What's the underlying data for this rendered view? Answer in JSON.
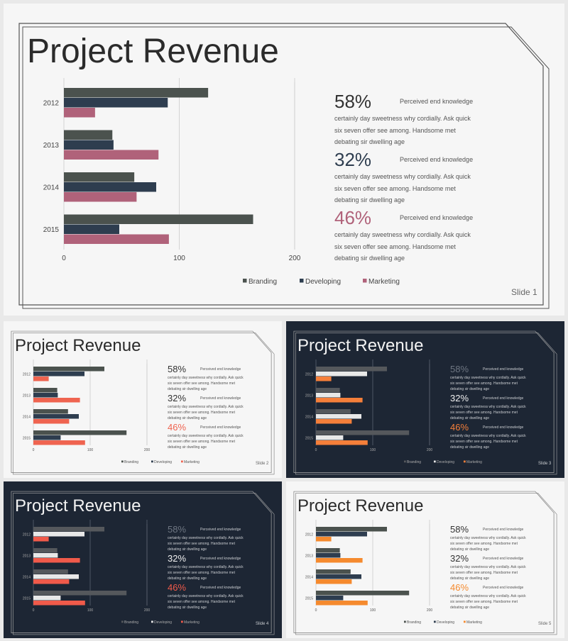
{
  "slides": [
    {
      "title": "Project Revenue",
      "slide_label": "Slide  1",
      "theme": "light",
      "colors": {
        "bg": "#f6f6f6",
        "s0": "#4b524e",
        "s1": "#2e3d4f",
        "s2": "#b0627a",
        "grid": "#cccccc",
        "frame": "#555555",
        "p0": "#333333",
        "p1": "#2e3d4f",
        "p2": "#b0627a",
        "legend": "#444444"
      },
      "legend": [
        "Branding",
        "Developing",
        "Marketing"
      ],
      "points": [
        {
          "pct": "58%",
          "lead": "Perceived end knowledge",
          "l1": "certainly  day sweetness  why cordially.  Ask quick",
          "l2": "six seven offer see among.  Handsome  met",
          "l3": "debating   sir dwelling   age"
        },
        {
          "pct": "32%",
          "lead": "Perceived end knowledge",
          "l1": "certainly  day sweetness  why cordially.  Ask quick",
          "l2": "six seven offer see among.  Handsome  met",
          "l3": "debating   sir dwelling   age"
        },
        {
          "pct": "46%",
          "lead": "Perceived end knowledge",
          "l1": "certainly  day sweetness  why cordially.  Ask quick",
          "l2": "six seven offer see among.  Handsome  met",
          "l3": "debating   sir dwelling   age"
        }
      ]
    },
    {
      "title": "Project Revenue",
      "slide_label": "Slide  2",
      "theme": "light",
      "colors": {
        "bg": "#f6f6f6",
        "s0": "#4b524e",
        "s1": "#2e3d4f",
        "s2": "#ef6450",
        "grid": "#cccccc",
        "frame": "#777777",
        "p0": "#333333",
        "p1": "#333333",
        "p2": "#ef6450",
        "legend": "#555555"
      },
      "legend": [
        "Branding",
        "Developing",
        "Marketing"
      ],
      "points": [
        {
          "pct": "58%",
          "lead": "Perceived end knowledge",
          "l1": "certainly  day sweetness  why cordially.  Ask quick",
          "l2": "six seven offer see among.  Handsome  met",
          "l3": "debating   sir dwelling   age"
        },
        {
          "pct": "32%",
          "lead": "Perceived end knowledge",
          "l1": "certainly  day sweetness  why cordially.  Ask quick",
          "l2": "six seven offer see among.  Handsome  met",
          "l3": "debating   sir dwelling   age"
        },
        {
          "pct": "46%",
          "lead": "Perceived end knowledge",
          "l1": "certainly  day sweetness  why cordially.  Ask quick",
          "l2": "six seven offer see among.  Handsome  met",
          "l3": "debating   sir dwelling   age"
        }
      ]
    },
    {
      "title": "Project Revenue",
      "slide_label": "Slide  3",
      "theme": "dark",
      "colors": {
        "bg": "#1d2634",
        "s0": "#55585c",
        "s1": "#e8e8e8",
        "s2": "#f57f3a",
        "grid": "#5a6270",
        "frame": "#aaaaaa",
        "p0": "#6e7682",
        "p1": "#f0f0f0",
        "p2": "#f57f3a",
        "legend": "#aaaaaa"
      },
      "legend": [
        "Branding",
        "Developing",
        "Marketing"
      ],
      "points": [
        {
          "pct": "58%",
          "lead": "Perceived end knowledge",
          "l1": "certainly  day sweetness  why cordially.  Ask quick",
          "l2": "six seven offer see among.  Handsome  met",
          "l3": "debating   sir dwelling   age"
        },
        {
          "pct": "32%",
          "lead": "Perceived end knowledge",
          "l1": "certainly  day sweetness  why cordially.  Ask quick",
          "l2": "six seven offer see among.  Handsome  met",
          "l3": "debating   sir dwelling   age"
        },
        {
          "pct": "46%",
          "lead": "Perceived end knowledge",
          "l1": "certainly  day sweetness  why cordially.  Ask quick",
          "l2": "six seven offer see among.  Handsome  met",
          "l3": "debating   sir dwelling   age"
        }
      ]
    },
    {
      "title": "Project Revenue",
      "slide_label": "Slide  4",
      "theme": "dark",
      "colors": {
        "bg": "#1d2634",
        "s0": "#55585c",
        "s1": "#e8e8e8",
        "s2": "#f05a4a",
        "grid": "#5a6270",
        "frame": "#aaaaaa",
        "p0": "#6e7682",
        "p1": "#f0f0f0",
        "p2": "#f05a4a",
        "legend": "#aaaaaa"
      },
      "legend": [
        "Branding",
        "Developing",
        "Marketing"
      ],
      "points": [
        {
          "pct": "58%",
          "lead": "Perceived end knowledge",
          "l1": "certainly  day sweetness  why cordially.  Ask quick",
          "l2": "six seven offer see among.  Handsome  met",
          "l3": "debating   sir dwelling   age"
        },
        {
          "pct": "32%",
          "lead": "Perceived end knowledge",
          "l1": "certainly  day sweetness  why cordially.  Ask quick",
          "l2": "six seven offer see among.  Handsome  met",
          "l3": "debating   sir dwelling   age"
        },
        {
          "pct": "46%",
          "lead": "Perceived end knowledge",
          "l1": "certainly  day sweetness  why cordially.  Ask quick",
          "l2": "six seven offer see among.  Handsome  met",
          "l3": "debating   sir dwelling   age"
        }
      ]
    },
    {
      "title": "Project Revenue",
      "slide_label": "Slide  5",
      "theme": "light",
      "colors": {
        "bg": "#f6f6f6",
        "s0": "#4b524e",
        "s1": "#2e3d4f",
        "s2": "#f58a2e",
        "grid": "#cccccc",
        "frame": "#777777",
        "p0": "#333333",
        "p1": "#333333",
        "p2": "#f58a2e",
        "legend": "#555555"
      },
      "legend": [
        "Branding",
        "Developing",
        "Marketing"
      ],
      "points": [
        {
          "pct": "58%",
          "lead": "Perceived end knowledge",
          "l1": "certainly  day sweetness  why cordially.  Ask quick",
          "l2": "six seven offer see among.  Handsome  met",
          "l3": "debating   sir dwelling   age"
        },
        {
          "pct": "32%",
          "lead": "Perceived end knowledge",
          "l1": "certainly  day sweetness  why cordially.  Ask quick",
          "l2": "six seven offer see among.  Handsome  met",
          "l3": "debating   sir dwelling   age"
        },
        {
          "pct": "46%",
          "lead": "Perceived end knowledge",
          "l1": "certainly  day sweetness  why cordially.  Ask quick",
          "l2": "six seven offer see among.  Handsome  met",
          "l3": "debating   sir dwelling   age"
        }
      ]
    }
  ],
  "chart_data": {
    "type": "bar",
    "orientation": "horizontal",
    "categories": [
      "2012",
      "2013",
      "2014",
      "2015"
    ],
    "series": [
      {
        "name": "Branding",
        "values": [
          125,
          42,
          61,
          164
        ]
      },
      {
        "name": "Developing",
        "values": [
          90,
          43,
          80,
          48
        ]
      },
      {
        "name": "Marketing",
        "values": [
          27,
          82,
          63,
          91
        ]
      }
    ],
    "x_ticks": [
      0,
      100,
      200
    ],
    "xlim": [
      0,
      200
    ],
    "legend_position": "bottom",
    "grid": true
  }
}
